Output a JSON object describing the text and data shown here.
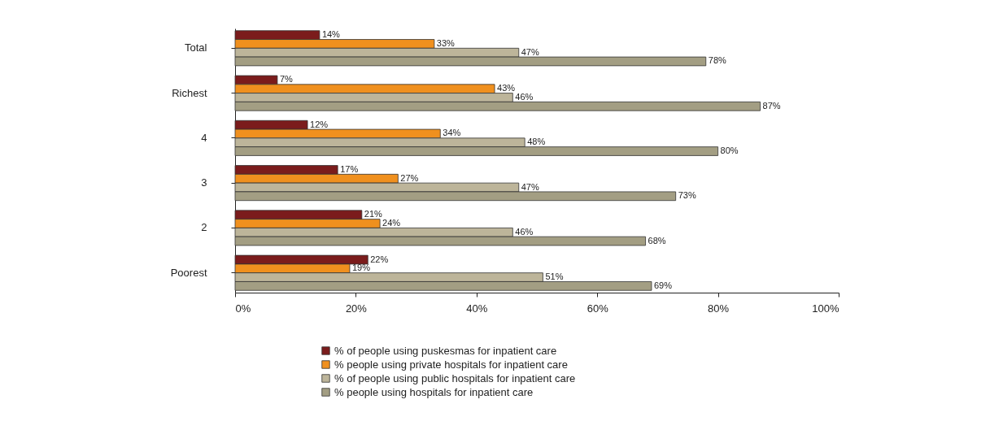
{
  "chart_data": {
    "type": "bar",
    "orientation": "horizontal",
    "categories": [
      "Total",
      "Richest",
      "4",
      "3",
      "2",
      "Poorest"
    ],
    "series": [
      {
        "name": "% of people using puskesmas for inpatient care",
        "color": "#7b1c1c",
        "values": [
          14,
          7,
          12,
          17,
          21,
          22
        ],
        "value_labels": [
          "14%",
          "7%",
          "12%",
          "17%",
          "21%",
          "22%"
        ]
      },
      {
        "name": "% people using private hospitals for inpatient care",
        "color": "#f0901e",
        "values": [
          33,
          43,
          34,
          27,
          24,
          19
        ],
        "value_labels": [
          "33%",
          "43%",
          "34%",
          "27%",
          "24%",
          "19%"
        ]
      },
      {
        "name": "% of people using public hospitals for inpatient care",
        "color": "#bdb59a",
        "values": [
          47,
          46,
          48,
          47,
          46,
          51
        ],
        "value_labels": [
          "47%",
          "46%",
          "48%",
          "47%",
          "46%",
          "51%"
        ]
      },
      {
        "name": "% people using hospitals for inpatient care",
        "color": "#a39e83",
        "values": [
          78,
          87,
          80,
          73,
          68,
          69
        ],
        "value_labels": [
          "78%",
          "87%",
          "80%",
          "73%",
          "68%",
          "69%"
        ]
      }
    ],
    "xlim": [
      0,
      100
    ],
    "xticks": [
      {
        "value": 0,
        "label": "0%"
      },
      {
        "value": 20,
        "label": "20%"
      },
      {
        "value": 40,
        "label": "40%"
      },
      {
        "value": 60,
        "label": "60%"
      },
      {
        "value": 80,
        "label": "80%"
      },
      {
        "value": 100,
        "label": "100%"
      }
    ],
    "grid": false,
    "legend": "bottom"
  }
}
